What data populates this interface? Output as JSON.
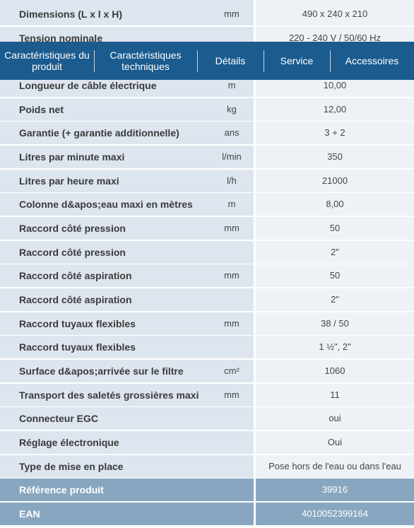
{
  "nav": [
    "Caractéristiques du produit",
    "Caractéristiques techniques",
    "Détails",
    "Service",
    "Accessoires"
  ],
  "table": {
    "rows": [
      {
        "label": "Dimensions (L x l x H)",
        "unit": "mm",
        "value": "490 x 240 x 210"
      },
      {
        "label": "Tension nominale",
        "value": "220 - 240 V / 50/60 Hz"
      },
      {
        "label": "Longueur de câble électrique",
        "unit": "m",
        "value": "10,00"
      },
      {
        "label": "Poids net",
        "unit": "kg",
        "value": "12,00"
      },
      {
        "label": "Garantie (+ garantie additionnelle)",
        "unit": "ans",
        "value": "3 + 2"
      },
      {
        "label": "Litres par minute maxi",
        "unit": "l/min",
        "value": "350"
      },
      {
        "label": "Litres par heure maxi",
        "unit": "l/h",
        "value": "21000"
      },
      {
        "label": "Colonne d&apos;eau maxi en mètres",
        "unit": "m",
        "value": "8,00"
      },
      {
        "label": "Raccord côté pression",
        "unit": "mm",
        "value": "50"
      },
      {
        "label": "Raccord côté pression",
        "value": "2\""
      },
      {
        "label": "Raccord côté aspiration",
        "unit": "mm",
        "value": "50"
      },
      {
        "label": "Raccord côté aspiration",
        "value": "2\""
      },
      {
        "label": "Raccord tuyaux flexibles",
        "unit": "mm",
        "value": "38 / 50"
      },
      {
        "label": "Raccord tuyaux flexibles",
        "value": "1 ½\", 2\""
      },
      {
        "label": "Surface d&apos;arrivée sur le filtre",
        "unit": "cm²",
        "value": "1060"
      },
      {
        "label": "Transport des saletés grossières maxi",
        "unit": "mm",
        "value": "11"
      },
      {
        "label": "Connecteur EGC",
        "value": "oui"
      },
      {
        "label": "Réglage électronique",
        "value": "Oui"
      },
      {
        "label": "Type de mise en place",
        "value": "Pose hors de l'eau ou dans l'eau"
      },
      {
        "label": "Référence produit",
        "value": "39916"
      },
      {
        "label": "EAN",
        "value": "4010052399164"
      }
    ]
  }
}
